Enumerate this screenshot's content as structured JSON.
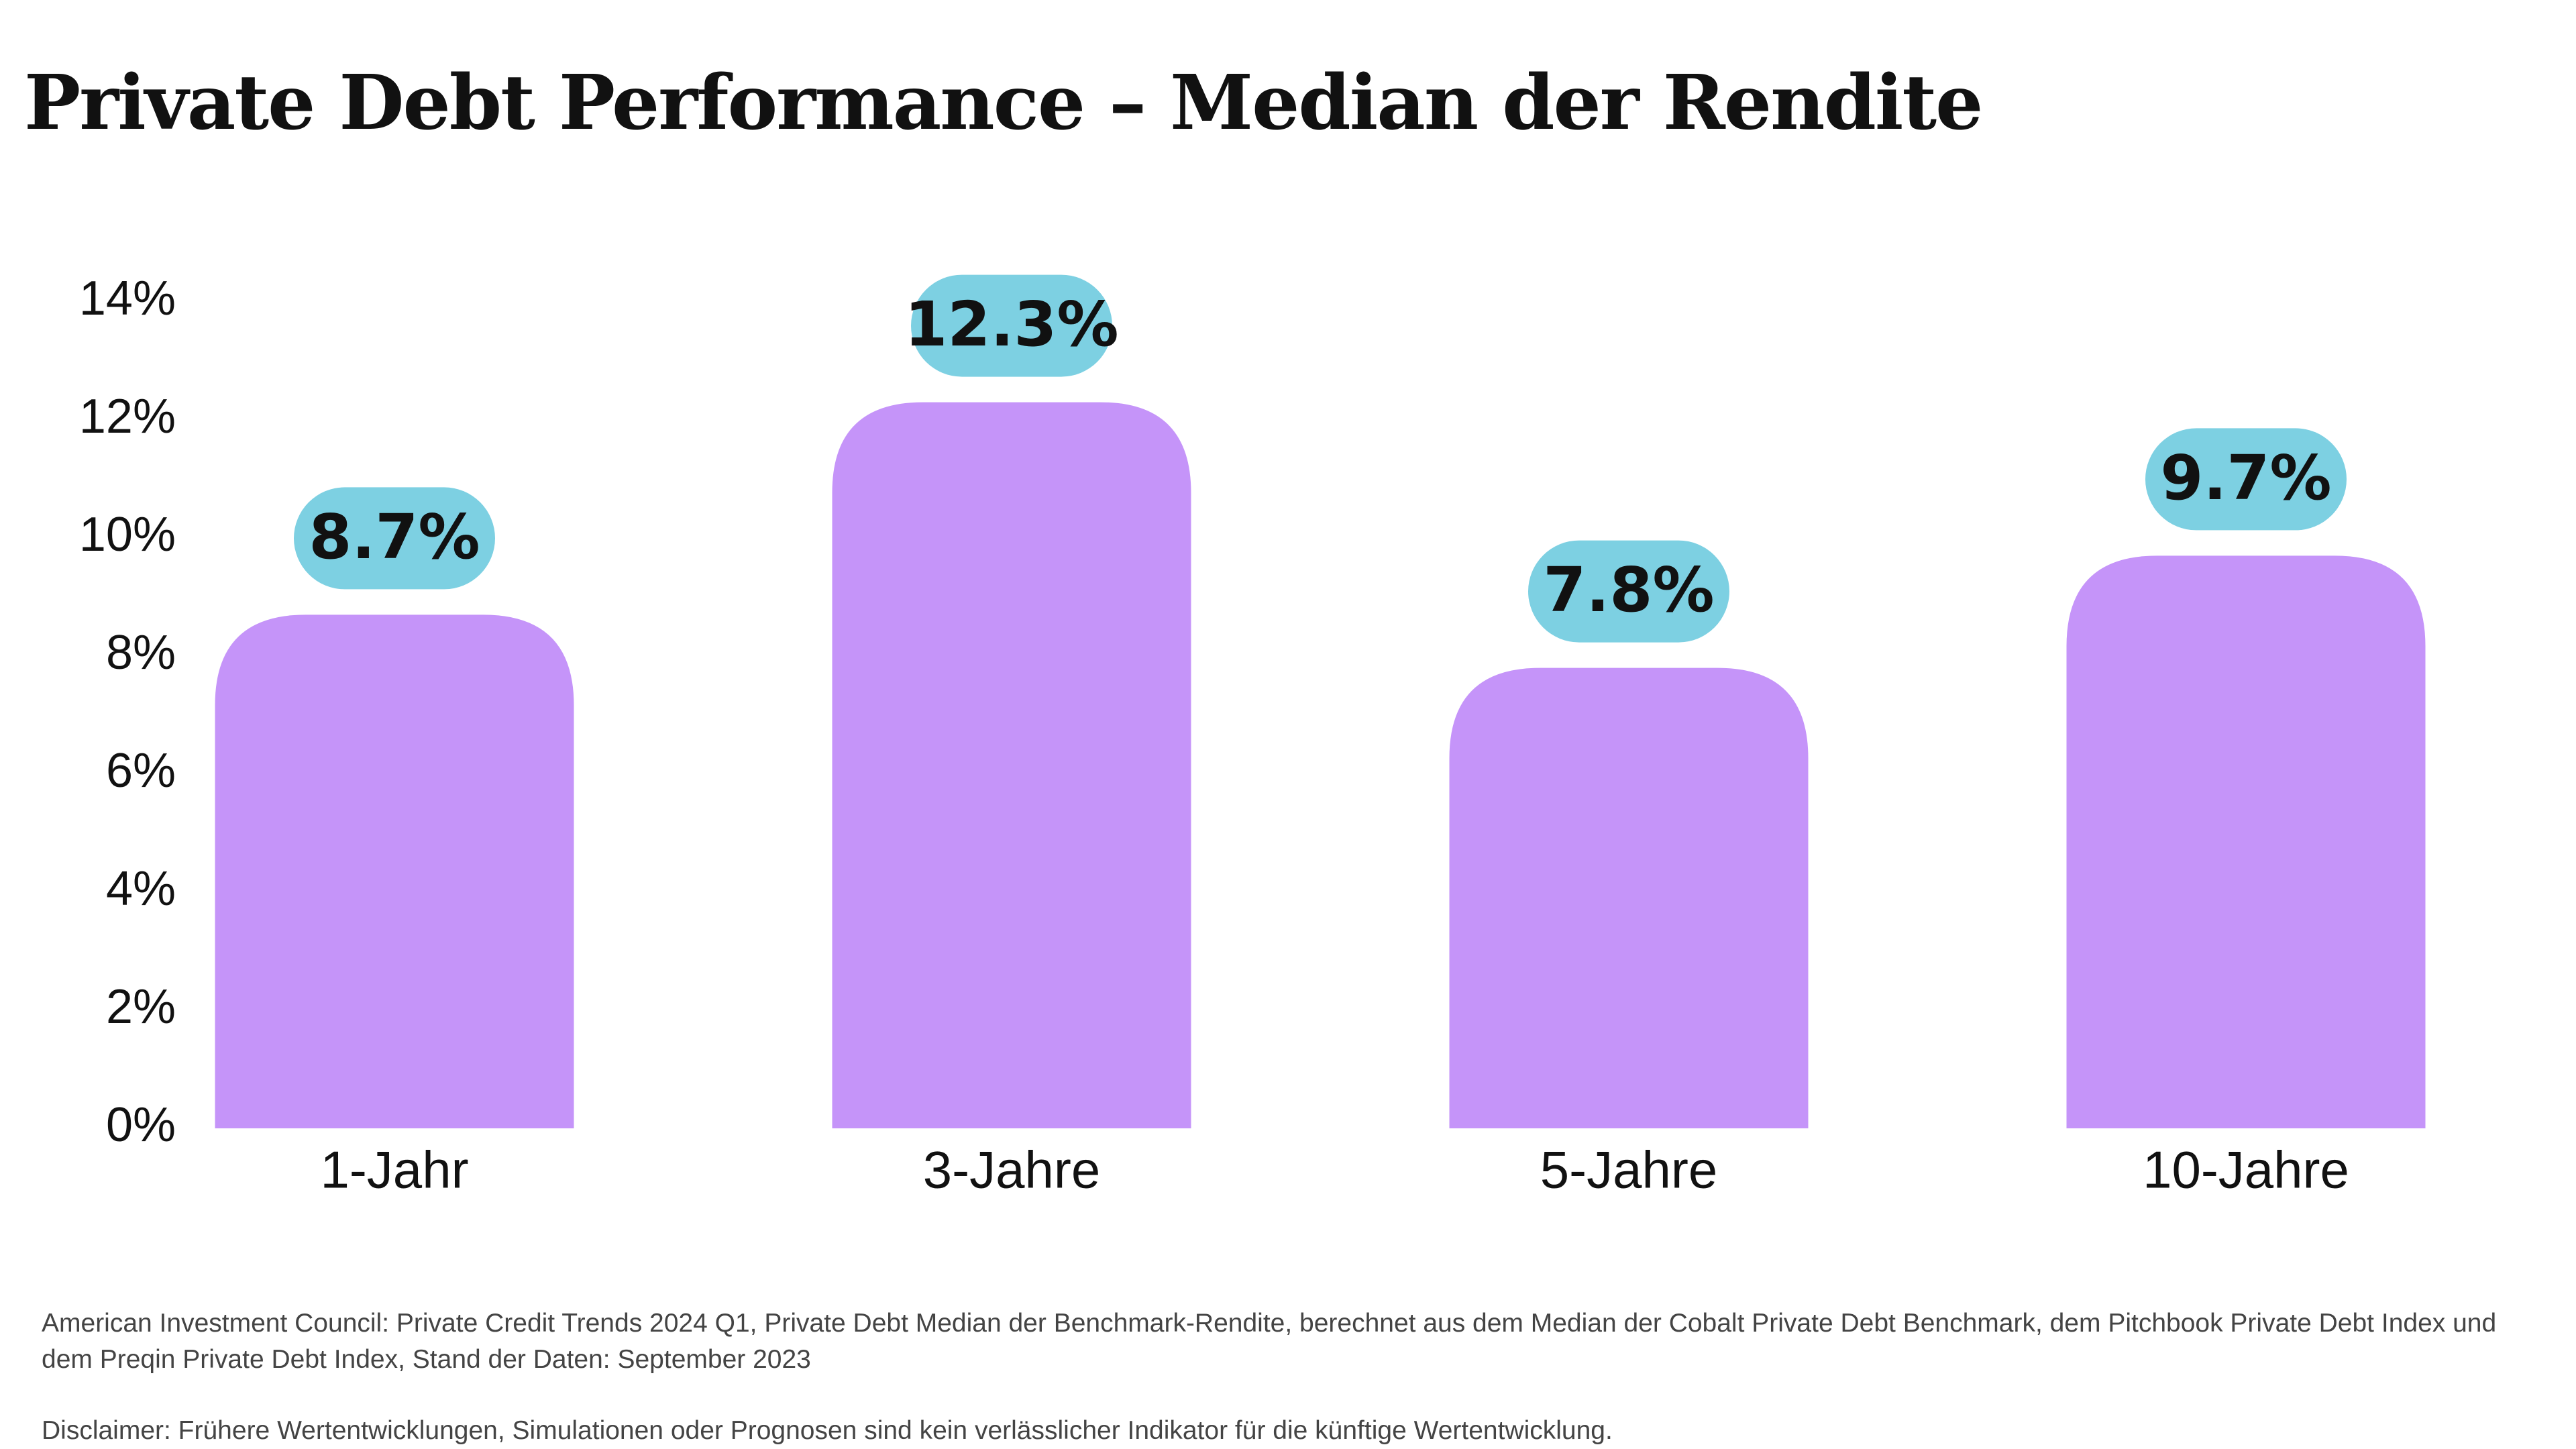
{
  "chart_data": {
    "type": "bar",
    "title": "Private Debt Performance – Median der Rendite",
    "categories": [
      "1-Jahr",
      "3-Jahre",
      "5-Jahre",
      "10-Jahre"
    ],
    "values": [
      8.7,
      12.3,
      7.8,
      9.7
    ],
    "data_labels": [
      "8.7%",
      "12.3%",
      "7.8%",
      "9.7%"
    ],
    "yticks": [
      0,
      2,
      4,
      6,
      8,
      10,
      12,
      14
    ],
    "ytick_labels": [
      "0%",
      "2%",
      "4%",
      "6%",
      "8%",
      "10%",
      "12%",
      "14%"
    ],
    "ylim": [
      0,
      14
    ],
    "xlabel": "",
    "ylabel": "",
    "grid": false,
    "bar_color": "#c594f9",
    "label_bubble_color": "#7dd0e2"
  },
  "footnotes": {
    "source": "American Investment Council: Private Credit Trends 2024 Q1, Private Debt Median der Benchmark-Rendite, berechnet aus dem Median der Cobalt Private Debt Benchmark, dem Pitchbook Private Debt Index und dem Preqin Private Debt Index, Stand der Daten: September 2023",
    "disclaimer": "Disclaimer: Frühere Wertentwicklungen, Simulationen oder Prognosen sind kein verlässlicher Indikator für die künftige Wertentwicklung."
  }
}
